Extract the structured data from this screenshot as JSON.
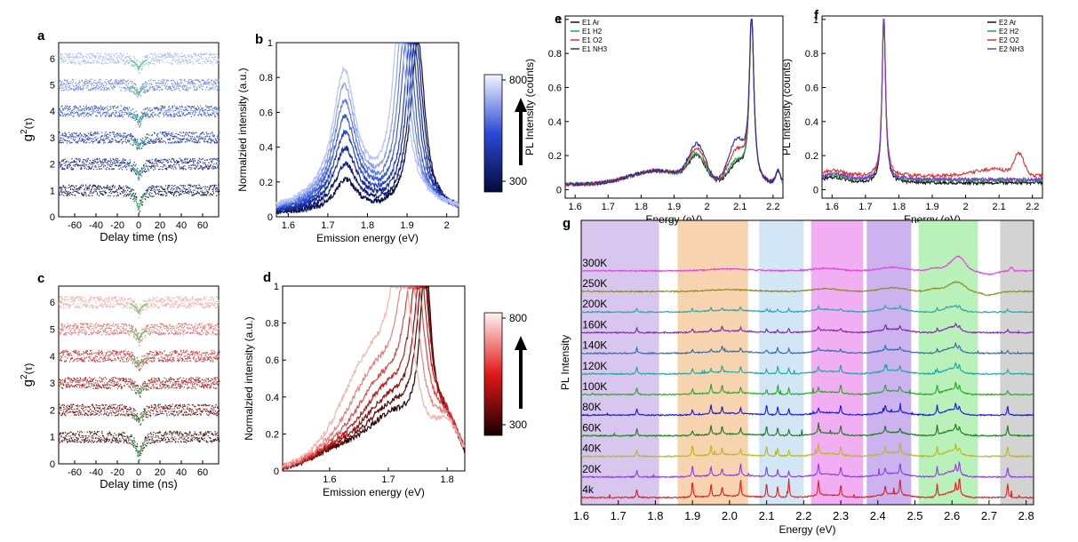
{
  "figure": {
    "panels": [
      "a",
      "b",
      "c",
      "d",
      "e",
      "f",
      "g"
    ]
  },
  "chart_data": [
    {
      "panel": "a",
      "type": "scatter",
      "xlabel": "Delay time (ns)",
      "ylabel": "g2(τ)",
      "xlim": [
        -75,
        75
      ],
      "ylim": [
        0,
        6.6
      ],
      "xticks": [
        -60,
        -40,
        -20,
        0,
        20,
        40,
        60
      ],
      "yticks": [
        0,
        1,
        2,
        3,
        4,
        5,
        6
      ],
      "offsets": [
        1,
        2,
        3,
        4,
        5,
        6
      ],
      "dip_depth": [
        0.75,
        0.45,
        0.4,
        0.4,
        0.4,
        0.4
      ],
      "colors": [
        "#0a0f4a",
        "#14238a",
        "#1c36b4",
        "#2f55d6",
        "#6883e6",
        "#a6b8f2"
      ],
      "fit_color": "#3ecf6a"
    },
    {
      "panel": "b",
      "type": "line",
      "xlabel": "Emission energy (eV)",
      "ylabel": "Normalzied intensity (a.u.)",
      "xlim": [
        1.57,
        2.03
      ],
      "ylim": [
        0,
        1.0
      ],
      "xticks": [
        1.6,
        1.7,
        1.8,
        1.9,
        2.0
      ],
      "yticks": [
        0.0,
        0.2,
        0.4,
        0.6,
        0.8,
        1.0
      ],
      "series_peaks": [
        1.927,
        1.922,
        1.916,
        1.91,
        1.902,
        1.895,
        1.888,
        1.88
      ],
      "colors": [
        "#0a0f4a",
        "#101d78",
        "#1a2f9e",
        "#2540c2",
        "#3a5bd8",
        "#5e7ce4",
        "#8ea2ee",
        "#b8c4f6"
      ],
      "colorbar": {
        "max": "800",
        "min": "300",
        "top": "#f4f6ff",
        "bottom": "#050a3a"
      }
    },
    {
      "panel": "c",
      "type": "scatter",
      "xlabel": "Delay time (ns)",
      "ylabel": "g2(τ)",
      "xlim": [
        -75,
        75
      ],
      "ylim": [
        0,
        6.6
      ],
      "xticks": [
        -60,
        -40,
        -20,
        0,
        20,
        40,
        60
      ],
      "yticks": [
        0,
        1,
        2,
        3,
        4,
        5,
        6
      ],
      "offsets": [
        1,
        2,
        3,
        4,
        5,
        6
      ],
      "dip_depth": [
        0.75,
        0.45,
        0.4,
        0.4,
        0.4,
        0.4
      ],
      "colors": [
        "#3a0404",
        "#6e0a0a",
        "#a01414",
        "#d02828",
        "#e86464",
        "#f2a8a0"
      ],
      "fit_color": "#3ecf6a"
    },
    {
      "panel": "d",
      "type": "line",
      "xlabel": "Emission energy (eV)",
      "ylabel": "Normalzied intensity (a.u.)",
      "xlim": [
        1.52,
        1.83
      ],
      "ylim": [
        0,
        1.0
      ],
      "xticks": [
        1.6,
        1.7,
        1.8
      ],
      "yticks": [
        0.0,
        0.2,
        0.4,
        0.6,
        0.8,
        1.0
      ],
      "series_peaks": [
        1.763,
        1.76,
        1.757,
        1.752,
        1.745,
        1.735,
        1.722
      ],
      "colors": [
        "#2a0303",
        "#5c0808",
        "#8c1010",
        "#c01e1e",
        "#e04848",
        "#ec8080",
        "#f4b4ac"
      ],
      "colorbar": {
        "max": "800",
        "min": "300",
        "top": "#fff4f2",
        "bottom": "#1a0000"
      }
    },
    {
      "panel": "e",
      "type": "line",
      "xlabel": "Energy (eV)",
      "ylabel": "PL Intensity (counts)",
      "xlim": [
        1.57,
        2.23
      ],
      "ylim": [
        -0.05,
        1.02
      ],
      "xticks": [
        1.6,
        1.7,
        1.8,
        1.9,
        2.0,
        2.1,
        2.2
      ],
      "yticks": [
        0.0,
        0.2,
        0.4,
        0.6,
        0.8,
        1.0
      ],
      "peak": 2.135,
      "series": [
        {
          "name": "E1 Ar",
          "color": "#111111"
        },
        {
          "name": "E1 H2",
          "color": "#2aa14a"
        },
        {
          "name": "E1 O2",
          "color": "#e03030"
        },
        {
          "name": "E1 NH3",
          "color": "#2a2aa8"
        }
      ]
    },
    {
      "panel": "f",
      "type": "line",
      "xlabel": "Energy (eV)",
      "ylabel": "PL Intensity (counts)",
      "xlim": [
        1.57,
        2.23
      ],
      "ylim": [
        -0.05,
        1.02
      ],
      "xticks": [
        1.6,
        1.7,
        1.8,
        1.9,
        2.0,
        2.1,
        2.2
      ],
      "yticks": [
        0.0,
        0.2,
        0.4,
        0.6,
        0.8,
        1.0
      ],
      "peak": 1.755,
      "series": [
        {
          "name": "E2 Ar",
          "color": "#111111"
        },
        {
          "name": "E2 H2",
          "color": "#2aa14a"
        },
        {
          "name": "E2 O2",
          "color": "#e03030"
        },
        {
          "name": "E2 NH3",
          "color": "#7a3ad0"
        }
      ]
    },
    {
      "panel": "g",
      "type": "line",
      "xlabel": "Energy (eV)",
      "ylabel": "PL Intensity",
      "xlim": [
        1.6,
        2.82
      ],
      "xticks": [
        1.6,
        1.7,
        1.8,
        1.9,
        2.0,
        2.1,
        2.2,
        2.3,
        2.4,
        2.5,
        2.6,
        2.7,
        2.8
      ],
      "xtick_labels": [
        "1.6",
        "1.7",
        "1.8",
        "1.9",
        "2.0",
        "2.1",
        "2.2",
        "2.3",
        "2.4",
        "2.5",
        "2.6",
        "2.7",
        "2.8"
      ],
      "bands": [
        {
          "from": 1.6,
          "to": 1.81,
          "color": "#d9c6ef"
        },
        {
          "from": 1.86,
          "to": 2.05,
          "color": "#f8d3b0"
        },
        {
          "from": 2.08,
          "to": 2.2,
          "color": "#d2e6f6"
        },
        {
          "from": 2.22,
          "to": 2.36,
          "color": "#f2aef2"
        },
        {
          "from": 2.37,
          "to": 2.49,
          "color": "#ccb2ee"
        },
        {
          "from": 2.51,
          "to": 2.67,
          "color": "#baf0ba"
        },
        {
          "from": 2.73,
          "to": 2.82,
          "color": "#d3d3d3"
        }
      ],
      "series": [
        {
          "name": "4k",
          "color": "#e02020"
        },
        {
          "name": "20K",
          "color": "#8a40e0"
        },
        {
          "name": "40K",
          "color": "#b8b820"
        },
        {
          "name": "60K",
          "color": "#1e7a1e"
        },
        {
          "name": "80K",
          "color": "#1a1ad8"
        },
        {
          "name": "100K",
          "color": "#2aa62a"
        },
        {
          "name": "120K",
          "color": "#20a6a0"
        },
        {
          "name": "140K",
          "color": "#2e6ea8"
        },
        {
          "name": "160K",
          "color": "#7a2aa8"
        },
        {
          "name": "200K",
          "color": "#2aa6a6"
        },
        {
          "name": "250K",
          "color": "#8a8a20"
        },
        {
          "name": "300K",
          "color": "#e040e0"
        }
      ],
      "peak_lines": [
        1.75,
        1.9,
        1.95,
        1.98,
        2.03,
        2.1,
        2.13,
        2.16,
        2.24,
        2.3,
        2.42,
        2.46,
        2.56,
        2.61,
        2.62,
        2.75
      ]
    }
  ]
}
